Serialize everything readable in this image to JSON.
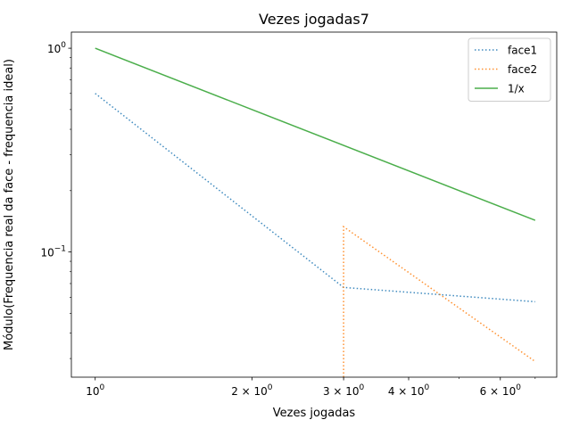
{
  "chart_data": {
    "type": "line",
    "title": "Vezes jogadas7",
    "xlabel": "Vezes jogadas",
    "ylabel": "Módulo(Frequencia real da face - frequencia ideal)",
    "xscale": "log",
    "yscale": "log",
    "xlim": [
      0.9,
      7.7
    ],
    "ylim": [
      0.0243,
      1.2
    ],
    "grid": false,
    "legend_position": "top-right",
    "x_ticks": [
      {
        "value": 1,
        "base": "10",
        "exp": "0"
      },
      {
        "value": 2,
        "base": "2 × 10",
        "exp": "0"
      },
      {
        "value": 3,
        "base": "3 × 10",
        "exp": "0"
      },
      {
        "value": 4,
        "base": "4 × 10",
        "exp": "0"
      },
      {
        "value": 6,
        "base": "6 × 10",
        "exp": "0"
      }
    ],
    "x_minor_ticks": [
      5,
      7
    ],
    "y_ticks": [
      {
        "value": 1,
        "base": "10",
        "exp": "0"
      },
      {
        "value": 0.1,
        "base": "10",
        "exp": "−1"
      }
    ],
    "y_minor_ticks": [
      0.03,
      0.04,
      0.05,
      0.06,
      0.07,
      0.08,
      0.09,
      0.2,
      0.3,
      0.4,
      0.5,
      0.6,
      0.7,
      0.8,
      0.9
    ],
    "series": [
      {
        "name": "face1",
        "color": "#1f77b4",
        "style": "dotted",
        "x": [
          1,
          3,
          7
        ],
        "y": [
          0.6,
          0.067,
          0.057
        ]
      },
      {
        "name": "face2",
        "color": "#ff7f0e",
        "style": "dotted",
        "x": [
          3,
          3,
          7
        ],
        "y": [
          0.0243,
          0.133,
          0.029
        ]
      },
      {
        "name": "1/x",
        "color": "#2ca02c",
        "style": "solid",
        "x": [
          1,
          7
        ],
        "y": [
          1.0,
          0.143
        ]
      }
    ]
  }
}
